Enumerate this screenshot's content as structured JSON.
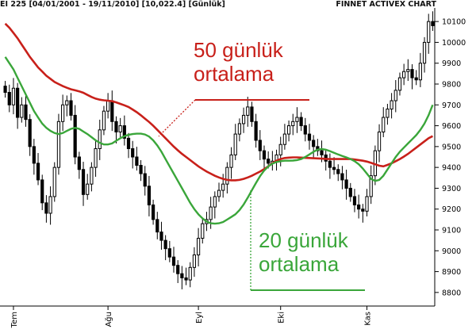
{
  "header": {
    "left": "EI 225  [04/01/2001 - 19/11/2010]  [10,022.4]  [Günlük]",
    "right": "FİNNET ACTIVEX CHART"
  },
  "annotations": {
    "ma50_line1": "50 günlük",
    "ma50_line2": "ortalama",
    "ma20_line1": "20 günlük",
    "ma20_line2": "ortalama"
  },
  "colors": {
    "ma50": "#c8201a",
    "ma20": "#3aa63a",
    "candle": "#000000",
    "candle_up_fill": "#ffffff",
    "grid": "#cccccc"
  },
  "chart_data": {
    "type": "candlestick",
    "ylim": [
      8750,
      10150
    ],
    "y_ticks": [
      8800,
      8900,
      9000,
      9100,
      9200,
      9300,
      9400,
      9500,
      9600,
      9700,
      9800,
      9900,
      10000,
      10100
    ],
    "x_labels": [
      "Tem",
      "Ağu",
      "Eyl",
      "Eki",
      "Kas"
    ],
    "x_label_index": [
      2,
      25,
      47,
      67,
      88
    ],
    "series": [
      {
        "name": "50 günlük ortalama",
        "values": [
          10090,
          10070,
          10045,
          10020,
          9990,
          9960,
          9930,
          9905,
          9880,
          9860,
          9840,
          9825,
          9810,
          9800,
          9790,
          9782,
          9775,
          9770,
          9765,
          9758,
          9748,
          9738,
          9730,
          9725,
          9722,
          9720,
          9718,
          9712,
          9705,
          9698,
          9690,
          9678,
          9665,
          9650,
          9634,
          9618,
          9600,
          9580,
          9560,
          9540,
          9520,
          9500,
          9482,
          9465,
          9450,
          9435,
          9420,
          9405,
          9392,
          9380,
          9370,
          9360,
          9352,
          9345,
          9340,
          9338,
          9338,
          9340,
          9345,
          9352,
          9360,
          9370,
          9380,
          9392,
          9405,
          9420,
          9432,
          9440,
          9445,
          9447,
          9448,
          9448,
          9447,
          9446,
          9445,
          9444,
          9443,
          9442,
          9441,
          9440,
          9440,
          9440,
          9440,
          9440,
          9440,
          9438,
          9435,
          9432,
          9428,
          9422,
          9415,
          9408,
          9405,
          9412,
          9420,
          9430,
          9440,
          9452,
          9465,
          9480,
          9495,
          9510,
          9525,
          9540,
          9550
        ]
      },
      {
        "name": "20 günlük ortalama",
        "values": [
          9930,
          9900,
          9870,
          9830,
          9790,
          9750,
          9710,
          9670,
          9640,
          9610,
          9590,
          9575,
          9565,
          9560,
          9565,
          9575,
          9585,
          9590,
          9585,
          9572,
          9560,
          9545,
          9530,
          9518,
          9510,
          9510,
          9515,
          9528,
          9540,
          9550,
          9556,
          9560,
          9562,
          9562,
          9558,
          9548,
          9530,
          9505,
          9475,
          9440,
          9405,
          9370,
          9335,
          9300,
          9265,
          9230,
          9200,
          9175,
          9155,
          9140,
          9132,
          9130,
          9132,
          9138,
          9150,
          9162,
          9175,
          9195,
          9222,
          9255,
          9290,
          9325,
          9358,
          9385,
          9405,
          9418,
          9426,
          9430,
          9432,
          9432,
          9433,
          9435,
          9440,
          9450,
          9462,
          9475,
          9485,
          9488,
          9485,
          9478,
          9470,
          9462,
          9455,
          9448,
          9440,
          9430,
          9415,
          9395,
          9370,
          9345,
          9335,
          9340,
          9360,
          9390,
          9420,
          9450,
          9475,
          9495,
          9515,
          9535,
          9555,
          9580,
          9610,
          9650,
          9700
        ]
      },
      {
        "name": "price_close",
        "values": [
          9760,
          9700,
          9780,
          9640,
          9700,
          9630,
          9500,
          9420,
          9340,
          9230,
          9180,
          9260,
          9400,
          9620,
          9700,
          9720,
          9650,
          9450,
          9390,
          9270,
          9320,
          9400,
          9490,
          9580,
          9670,
          9720,
          9620,
          9570,
          9600,
          9540,
          9490,
          9450,
          9410,
          9370,
          9310,
          9220,
          9150,
          9090,
          9050,
          9010,
          8970,
          8930,
          8890,
          8870,
          8860,
          8920,
          8980,
          9060,
          9130,
          9150,
          9210,
          9260,
          9290,
          9320,
          9400,
          9460,
          9560,
          9610,
          9650,
          9690,
          9620,
          9530,
          9480,
          9440,
          9420,
          9430,
          9460,
          9510,
          9560,
          9600,
          9620,
          9640,
          9600,
          9560,
          9530,
          9500,
          9480,
          9460,
          9430,
          9400,
          9390,
          9370,
          9340,
          9300,
          9260,
          9220,
          9200,
          9190,
          9260,
          9360,
          9480,
          9570,
          9640,
          9680,
          9720,
          9770,
          9830,
          9860,
          9870,
          9830,
          9820,
          9900,
          10000,
          10100,
          10080
        ]
      }
    ],
    "x_count": 105
  }
}
